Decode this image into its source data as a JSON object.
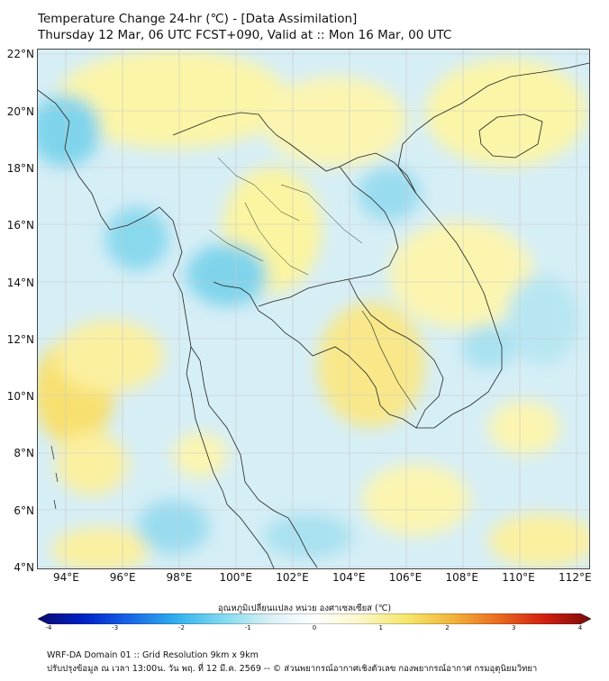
{
  "title": {
    "line1": "Temperature Change 24-hr (℃) - [Data Assimilation]",
    "line2": "Thursday 12 Mar, 06 UTC FCST+090, Valid at :: Mon 16 Mar, 00 UTC"
  },
  "map": {
    "lon_range": [
      93,
      112.5
    ],
    "lat_range": [
      4,
      22.2
    ],
    "lat_labels": [
      "22°N",
      "20°N",
      "18°N",
      "16°N",
      "14°N",
      "12°N",
      "10°N",
      "8°N",
      "6°N",
      "4°N"
    ],
    "lon_labels": [
      "94°E",
      "96°E",
      "98°E",
      "100°E",
      "102°E",
      "104°E",
      "106°E",
      "108°E",
      "110°E",
      "112°E"
    ],
    "lat_values": [
      22,
      20,
      18,
      16,
      14,
      12,
      10,
      8,
      6,
      4
    ],
    "lon_values": [
      94,
      96,
      98,
      100,
      102,
      104,
      106,
      108,
      110,
      112
    ],
    "background_color": "#d6eef6",
    "warm_color": "#fbf5a8",
    "cool_color": "#88d8ee",
    "coast_color": "#222222"
  },
  "colorbar": {
    "title": "อุณหภูมิเปลี่ยนแปลง หน่วย องศาเซลเซียส (℃)",
    "ticks": [
      "-4",
      "-3",
      "-2",
      "-1",
      "0",
      "1",
      "2",
      "3",
      "4"
    ],
    "tick_values": [
      -4,
      -3,
      -2,
      -1,
      0,
      1,
      2,
      3,
      4
    ],
    "range": [
      -4,
      4
    ],
    "colors": [
      "#0a0a6e",
      "#0022c8",
      "#1a66e6",
      "#2fb0ec",
      "#7fd9f0",
      "#d8f0f4",
      "#ffffff",
      "#fbf7c8",
      "#f5e66a",
      "#f2b43a",
      "#ea6a1e",
      "#d02010",
      "#7a0a0a"
    ]
  },
  "footer": {
    "line1": "WRF-DA Domain 01 :: Grid Resolution 9km x 9km",
    "line2": "ปรับปรุงข้อมูล ณ เวลา 13:00น. วัน พฤ. ที่ 12 มี.ค. 2569 -- © ส่วนพยากรณ์อากาศเชิงตัวเลข กองพยากรณ์อากาศ กรมอุตุนิยมวิทยา"
  }
}
